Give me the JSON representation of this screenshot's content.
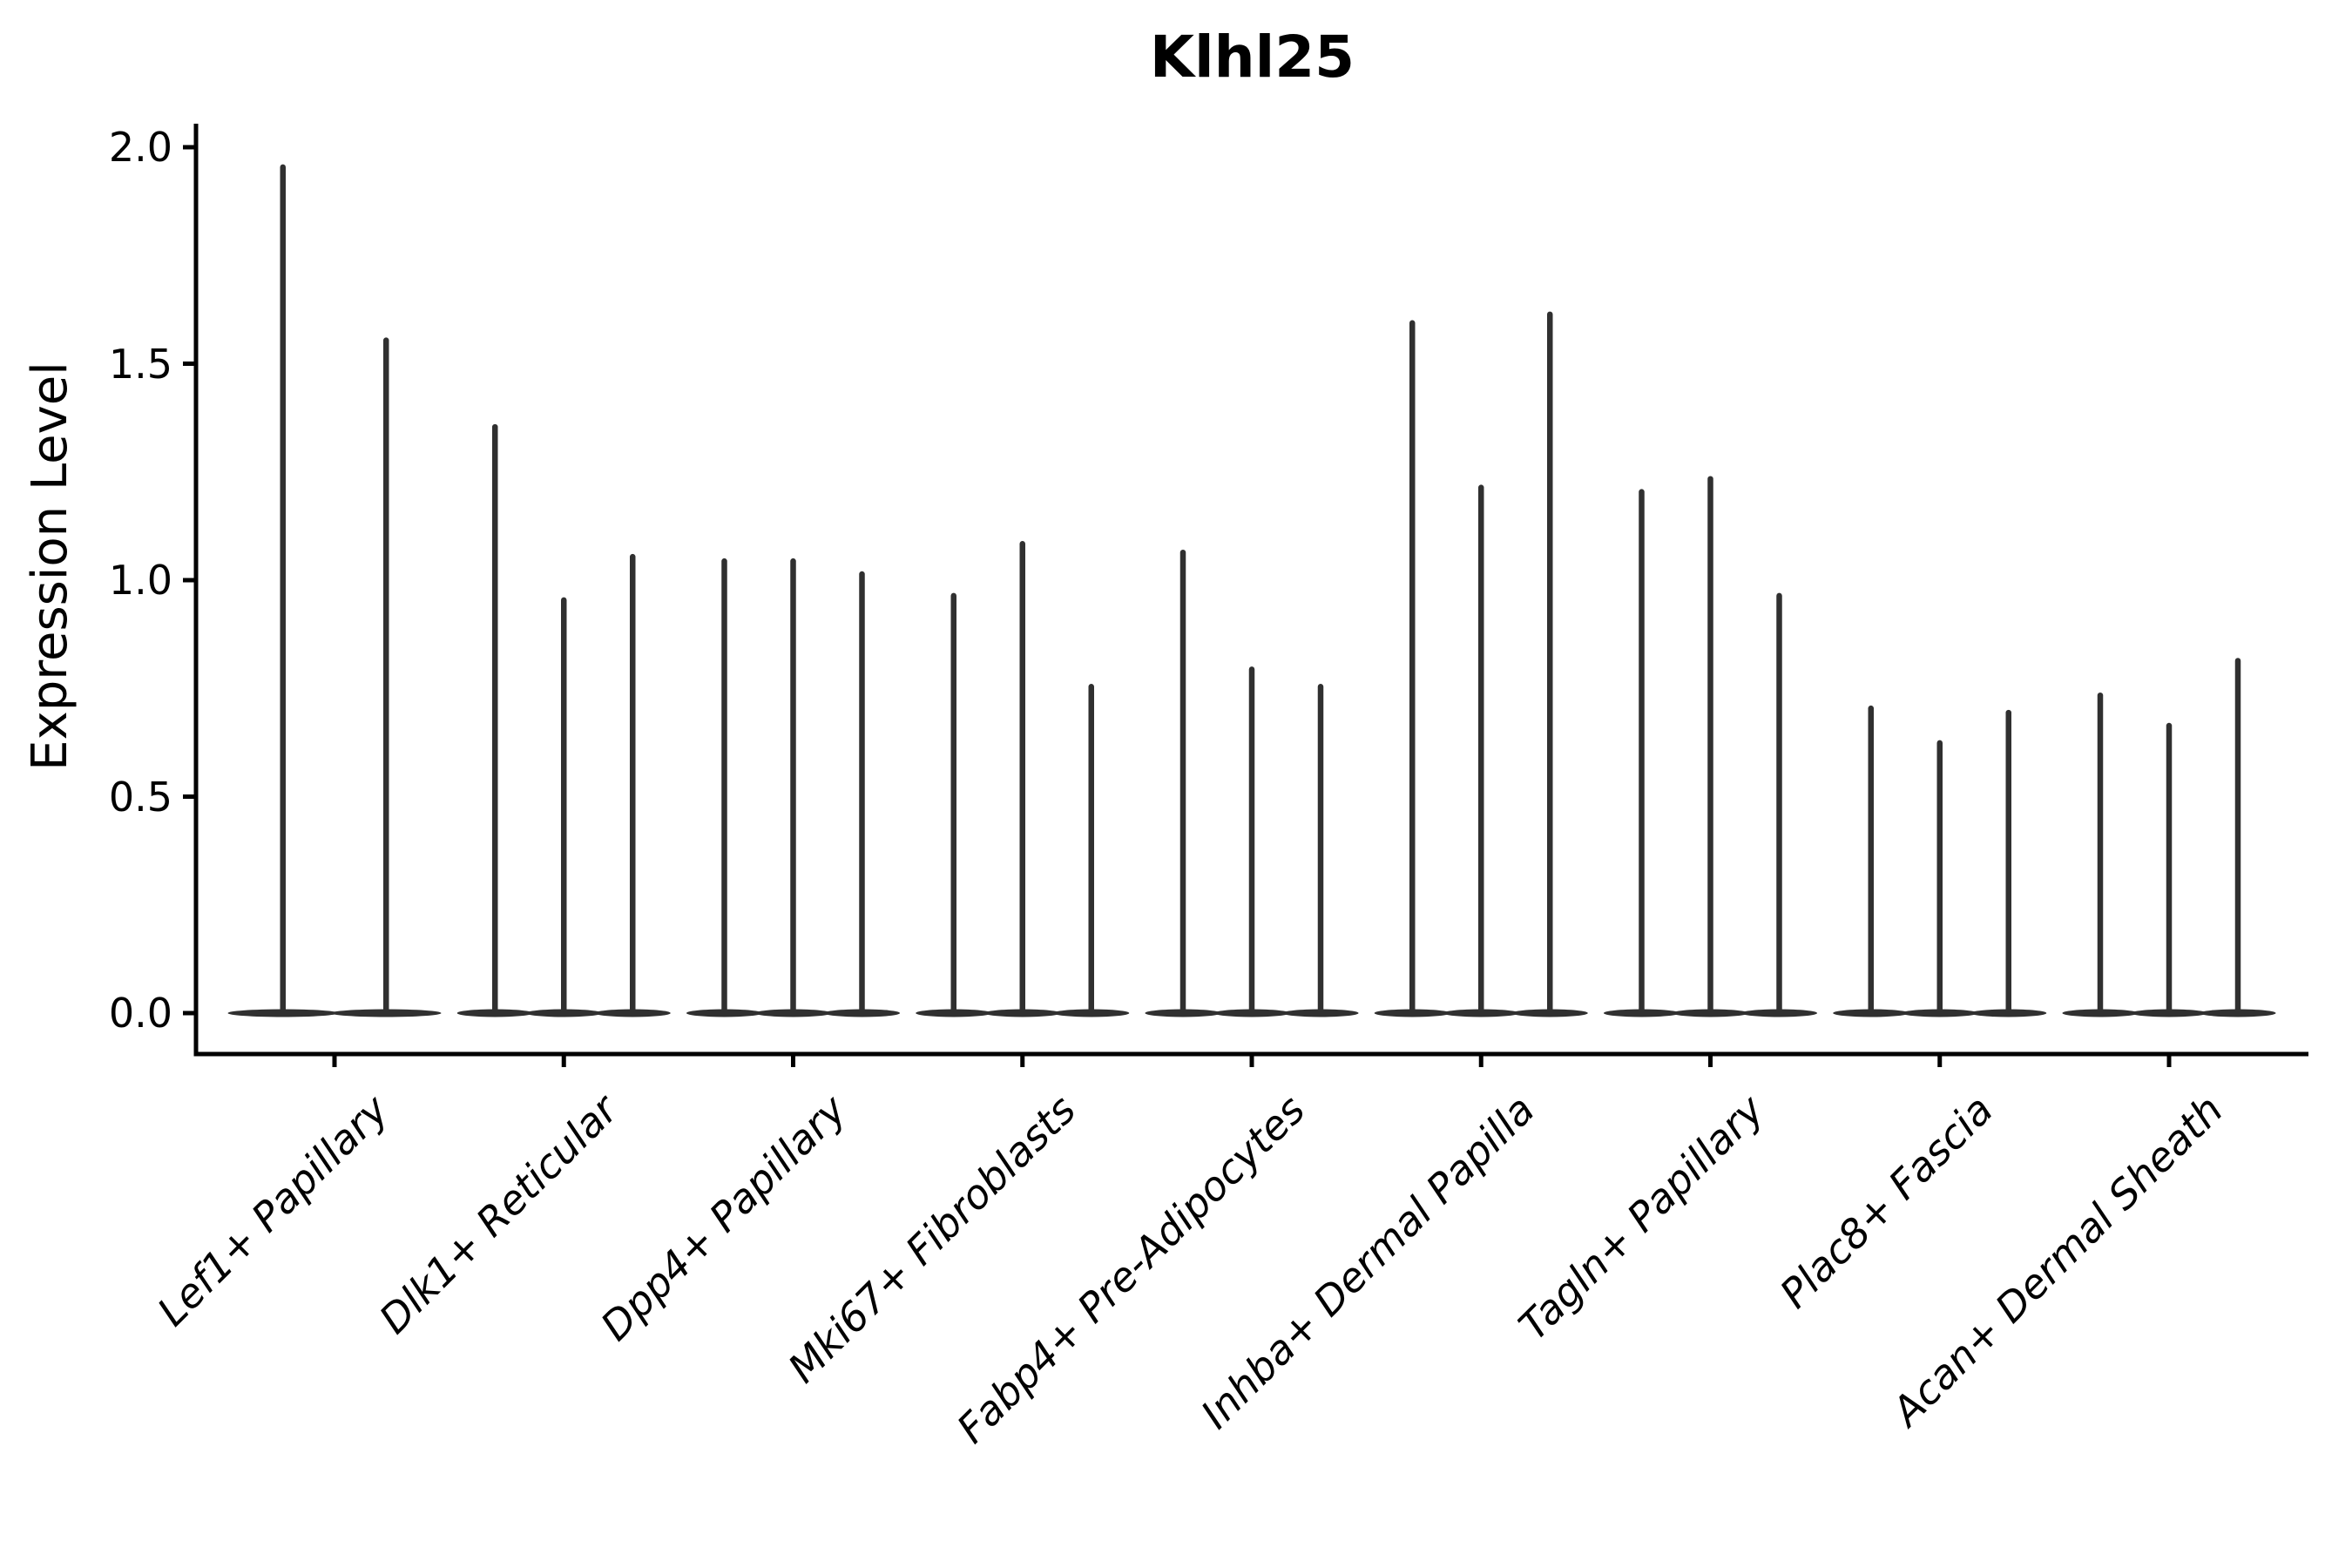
{
  "chart_data": {
    "type": "violin",
    "title": "Klhl25",
    "xlabel": "",
    "ylabel": "Expression Level",
    "ylim": [
      0,
      2.06
    ],
    "yticks": [
      0.0,
      0.5,
      1.0,
      1.5,
      2.0
    ],
    "ytick_labels": [
      "0.0",
      "0.5",
      "1.0",
      "1.5",
      "2.0"
    ],
    "grid": "off",
    "legend": "none",
    "categories": [
      "Lef1+ Papillary",
      "Dlk1+ Reticular",
      "Dpp4+ Papillary",
      "Mki67+ Fibroblasts",
      "Fabp4+ Pre-Adipocytes",
      "Inhba+ Dermal Papilla",
      "Tagln+ Papillary",
      "Plac8+ Fascia",
      "Acan+ Dermal Sheath"
    ],
    "groups": [
      {
        "category": "Lef1+ Papillary",
        "violin_min": 0,
        "violin_max_values": [
          1.96,
          1.56
        ]
      },
      {
        "category": "Dlk1+ Reticular",
        "violin_min": 0,
        "violin_max_values": [
          1.36,
          0.96,
          1.06
        ]
      },
      {
        "category": "Dpp4+ Papillary",
        "violin_min": 0,
        "violin_max_values": [
          1.05,
          1.05,
          1.02
        ]
      },
      {
        "category": "Mki67+ Fibroblasts",
        "violin_min": 0,
        "violin_max_values": [
          0.97,
          1.09,
          0.76
        ]
      },
      {
        "category": "Fabp4+ Pre-Adipocytes",
        "violin_min": 0,
        "violin_max_values": [
          1.07,
          0.8,
          0.76
        ]
      },
      {
        "category": "Inhba+ Dermal Papilla",
        "violin_min": 0,
        "violin_max_values": [
          1.6,
          1.22,
          1.62
        ]
      },
      {
        "category": "Tagln+ Papillary",
        "violin_min": 0,
        "violin_max_values": [
          1.21,
          1.24,
          0.97
        ]
      },
      {
        "category": "Plac8+ Fascia",
        "violin_min": 0,
        "violin_max_values": [
          0.71,
          0.63,
          0.7
        ]
      },
      {
        "category": "Acan+ Dermal Sheath",
        "violin_min": 0,
        "violin_max_values": [
          0.74,
          0.67,
          0.82
        ]
      }
    ],
    "style": {
      "violin_color": "#303030",
      "axis_color": "#000000",
      "background_color": "#ffffff",
      "x_label_rotation_deg": 45,
      "x_label_style": "italic"
    }
  }
}
